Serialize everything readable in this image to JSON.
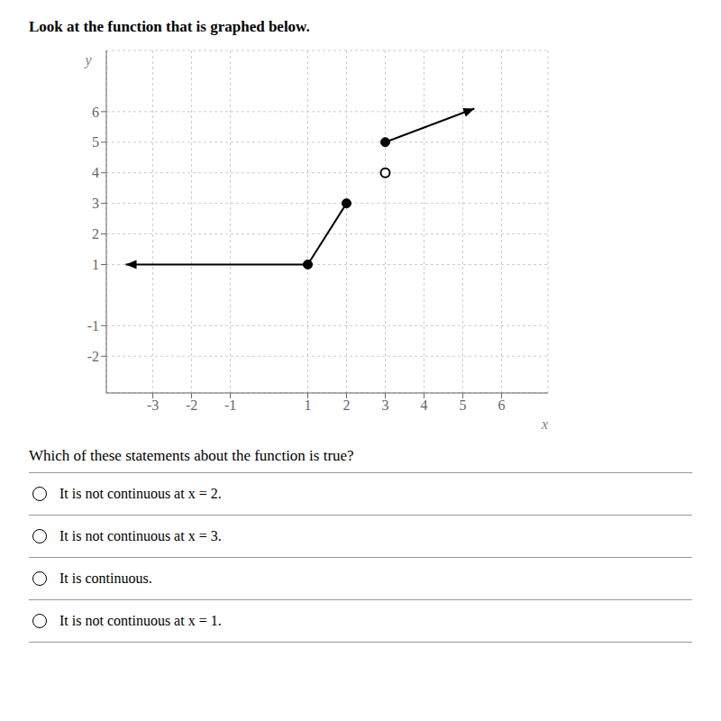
{
  "chart_data": {
    "type": "line",
    "title": "Look at the function that is graphed below.",
    "x_label": "x",
    "y_label": "y",
    "xlim": [
      -4.2,
      7.2
    ],
    "ylim": [
      -3.2,
      8.0
    ],
    "xticks": [
      -3,
      -2,
      -1,
      1,
      2,
      3,
      4,
      5,
      6
    ],
    "yticks": [
      -2,
      -1,
      1,
      2,
      3,
      4,
      5,
      6
    ],
    "grid": true,
    "series": [
      {
        "type": "line",
        "color": "#000000",
        "marker": "arrow",
        "x": [
          1,
          -3.7
        ],
        "values": [
          1,
          1
        ]
      },
      {
        "type": "line",
        "color": "#000000",
        "x": [
          1,
          2
        ],
        "values": [
          1,
          3
        ]
      },
      {
        "type": "line",
        "color": "#000000",
        "marker": "arrow",
        "x": [
          3,
          5.3
        ],
        "values": [
          5,
          6.1
        ]
      },
      {
        "type": "scatter",
        "color": "#000000",
        "marker": "filled",
        "x": [
          1,
          2,
          3
        ],
        "values": [
          1,
          3,
          5
        ]
      },
      {
        "type": "scatter",
        "color": "#000000",
        "marker": "open",
        "x": [
          3
        ],
        "values": [
          4
        ]
      }
    ],
    "annotations": [
      "Which of these statements about the function is true?",
      "It is not continuous at x = 2.",
      "It is not continuous at x = 3.",
      "It is continuous.",
      "It is not continuous at x = 1."
    ]
  }
}
